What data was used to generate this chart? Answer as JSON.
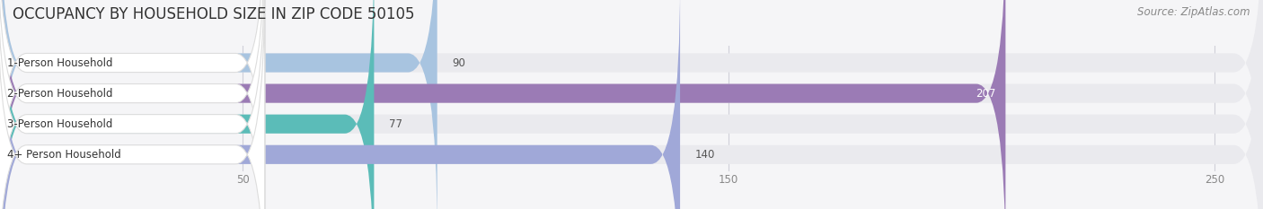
{
  "title": "OCCUPANCY BY HOUSEHOLD SIZE IN ZIP CODE 50105",
  "source": "Source: ZipAtlas.com",
  "categories": [
    "1-Person Household",
    "2-Person Household",
    "3-Person Household",
    "4+ Person Household"
  ],
  "values": [
    90,
    207,
    77,
    140
  ],
  "bar_colors": [
    "#a8c4e0",
    "#9b7bb5",
    "#5bbcb8",
    "#a0a8d8"
  ],
  "xlim": [
    0,
    260
  ],
  "xticks": [
    50,
    150,
    250
  ],
  "figsize": [
    14.06,
    2.33
  ],
  "dpi": 100,
  "title_fontsize": 12,
  "source_fontsize": 8.5,
  "label_fontsize": 8.5,
  "value_fontsize": 8.5,
  "bar_height": 0.62,
  "background_color": "#f5f5f7",
  "bg_bar_color": "#eaeaee",
  "grid_color": "#d0d0d8",
  "label_box_color": "#ffffff",
  "label_box_edge": "#dddddd",
  "title_color": "#333333",
  "source_color": "#888888",
  "tick_color": "#888888"
}
